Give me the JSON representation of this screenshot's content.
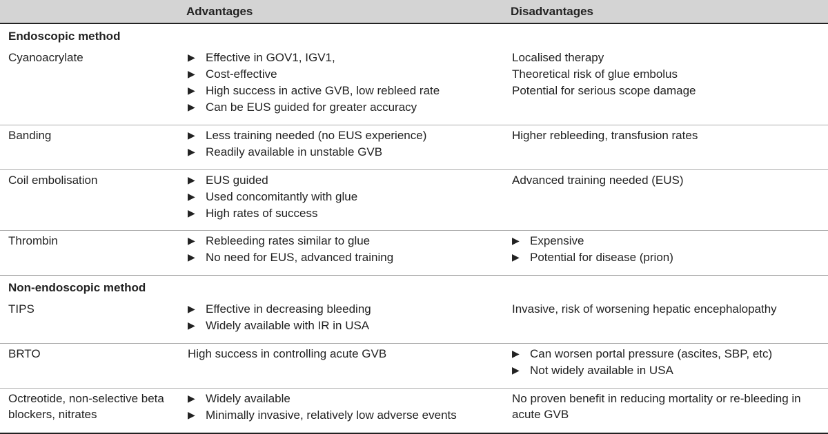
{
  "columns": {
    "method": "",
    "advantages": "Advantages",
    "disadvantages": "Disadvantages"
  },
  "sections": [
    {
      "title": "Endoscopic method",
      "rows": [
        {
          "method": "Cyanoacrylate",
          "adv_style": "bullet",
          "advantages": [
            "Effective in GOV1, IGV1,",
            "Cost-effective",
            "High success in active GVB, low rebleed rate",
            "Can be EUS guided for greater accuracy"
          ],
          "dis_style": "plain",
          "disadvantages": [
            "Localised therapy",
            "Theoretical risk of glue embolus",
            "Potential for serious scope damage"
          ]
        },
        {
          "method": "Banding",
          "adv_style": "bullet",
          "advantages": [
            "Less training needed (no EUS experience)",
            "Readily available in unstable GVB"
          ],
          "dis_style": "plain",
          "disadvantages": [
            "Higher rebleeding, transfusion rates"
          ]
        },
        {
          "method": "Coil embolisation",
          "adv_style": "bullet",
          "advantages": [
            "EUS guided",
            "Used concomitantly with glue",
            "High rates of success"
          ],
          "dis_style": "plain",
          "disadvantages": [
            "Advanced training needed (EUS)"
          ]
        },
        {
          "method": "Thrombin",
          "adv_style": "bullet",
          "advantages": [
            "Rebleeding rates similar to glue",
            "No need for EUS, advanced training"
          ],
          "dis_style": "bullet",
          "disadvantages": [
            "Expensive",
            "Potential for disease (prion)"
          ]
        }
      ]
    },
    {
      "title": "Non-endoscopic method",
      "rows": [
        {
          "method": "TIPS",
          "adv_style": "bullet",
          "advantages": [
            "Effective in decreasing bleeding",
            "Widely available with IR in USA"
          ],
          "dis_style": "plain",
          "disadvantages": [
            "Invasive, risk of worsening hepatic encephalopathy"
          ]
        },
        {
          "method": "BRTO",
          "adv_style": "plain",
          "advantages": [
            "High success in controlling acute GVB"
          ],
          "dis_style": "bullet",
          "disadvantages": [
            "Can worsen portal pressure (ascites, SBP, etc)",
            "Not widely available in USA"
          ]
        },
        {
          "method": "Octreotide, non-selective beta blockers, nitrates",
          "adv_style": "bullet",
          "advantages": [
            "Widely available",
            "Minimally invasive, relatively low adverse events"
          ],
          "dis_style": "plain",
          "disadvantages": [
            "No proven benefit in reducing mortality or re-bleeding in acute GVB"
          ]
        }
      ]
    }
  ]
}
